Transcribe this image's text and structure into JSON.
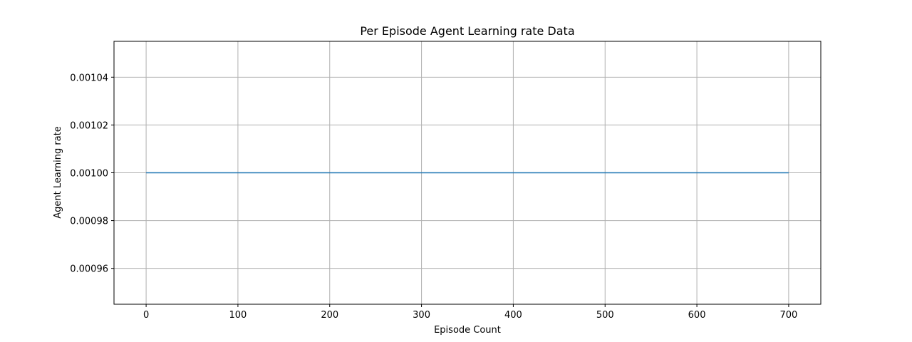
{
  "chart_data": {
    "type": "line",
    "title": "Per Episode Agent Learning rate Data",
    "xlabel": "Episode Count",
    "ylabel": "Agent Learning rate",
    "xlim": [
      -35,
      735
    ],
    "ylim": [
      0.000945,
      0.001055
    ],
    "xticks": [
      0,
      100,
      200,
      300,
      400,
      500,
      600,
      700
    ],
    "xtick_labels": [
      "0",
      "100",
      "200",
      "300",
      "400",
      "500",
      "600",
      "700"
    ],
    "yticks": [
      0.00096,
      0.00098,
      0.001,
      0.00102,
      0.00104
    ],
    "ytick_labels": [
      "0.00096",
      "0.00098",
      "0.00100",
      "0.00102",
      "0.00104"
    ],
    "grid": true,
    "series": [
      {
        "color": "#1f77b4",
        "x": [
          0,
          100,
          200,
          300,
          400,
          500,
          600,
          700
        ],
        "y": [
          0.001,
          0.001,
          0.001,
          0.001,
          0.001,
          0.001,
          0.001,
          0.001
        ]
      }
    ]
  }
}
